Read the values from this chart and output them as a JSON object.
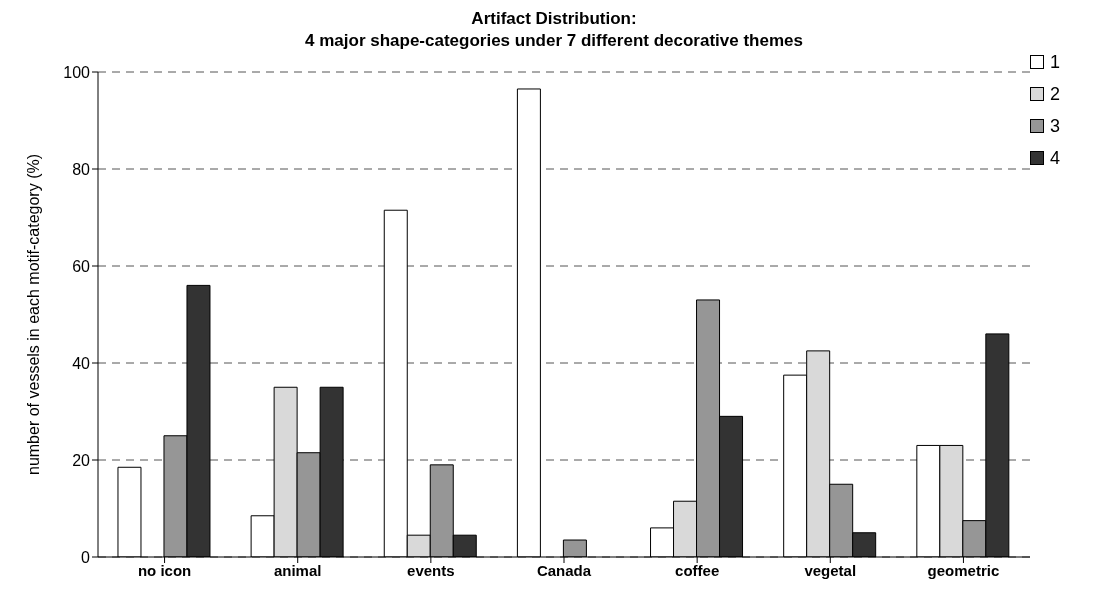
{
  "chart_data": {
    "type": "bar",
    "title": "Artifact Distribution:",
    "subtitle": "4 major shape-categories under 7 different decorative themes",
    "ylabel": "number of vessels in each motif-category (%)",
    "categories": [
      "no icon",
      "animal",
      "events",
      "Canada",
      "coffee",
      "vegetal",
      "geometric"
    ],
    "series": [
      {
        "name": "1",
        "color": "#ffffff",
        "values": [
          18.5,
          8.5,
          71.5,
          96.5,
          6,
          37.5,
          23
        ]
      },
      {
        "name": "2",
        "color": "#d9d9d9",
        "values": [
          0,
          35,
          4.5,
          0,
          11.5,
          42.5,
          23
        ]
      },
      {
        "name": "3",
        "color": "#969696",
        "values": [
          25,
          21.5,
          19,
          3.5,
          53,
          15,
          7.5
        ]
      },
      {
        "name": "4",
        "color": "#333333",
        "values": [
          56,
          35,
          4.5,
          0,
          29,
          5,
          46
        ]
      }
    ],
    "ylim": [
      0,
      100
    ],
    "yticks": [
      0,
      20,
      40,
      60,
      80,
      100
    ],
    "grid": "y",
    "legend": "top right"
  }
}
